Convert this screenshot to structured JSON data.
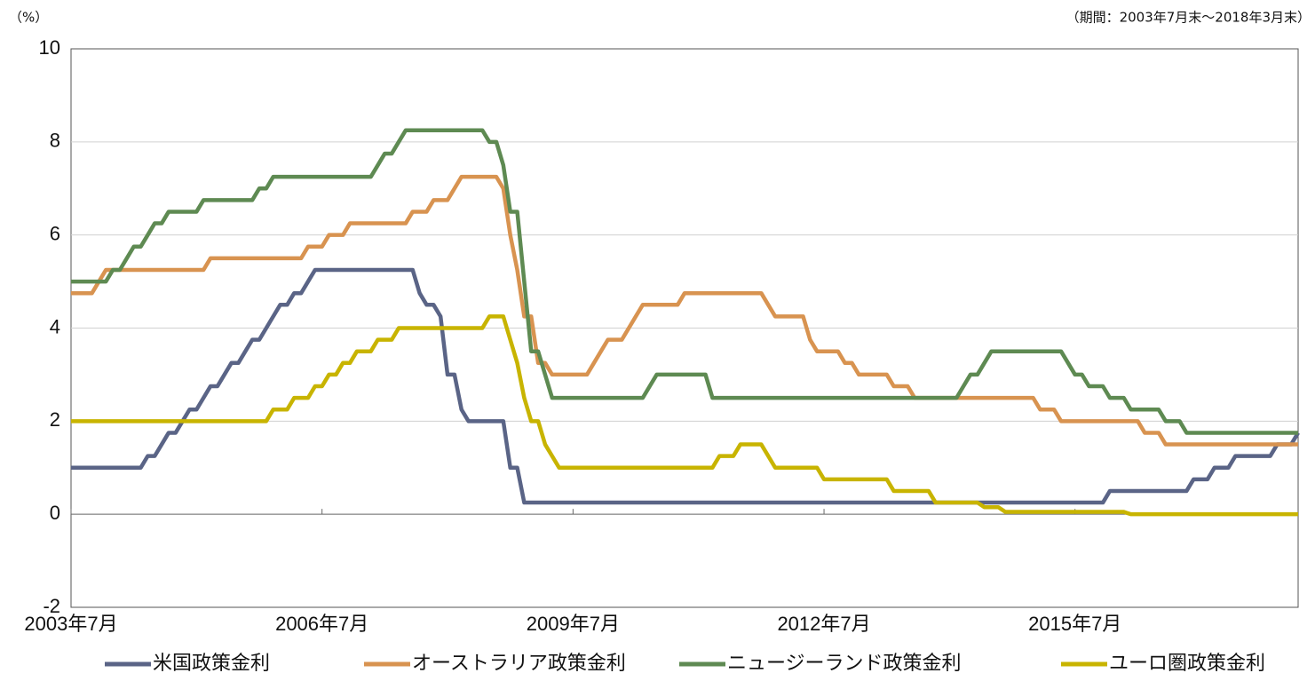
{
  "chart_data": {
    "type": "line",
    "y_unit": "（%）",
    "period_note": "（期間：2003年7月末～2018年3月末）",
    "xlim": [
      "2003-07",
      "2018-03"
    ],
    "xticks": [
      {
        "value": "2003-07",
        "label": "2003年7月"
      },
      {
        "value": "2006-07",
        "label": "2006年7月"
      },
      {
        "value": "2009-07",
        "label": "2009年7月"
      },
      {
        "value": "2012-07",
        "label": "2012年7月"
      },
      {
        "value": "2015-07",
        "label": "2015年7月"
      }
    ],
    "ylim": [
      -2,
      10
    ],
    "yticks": [
      -2,
      0,
      2,
      4,
      6,
      8,
      10
    ],
    "grid": true,
    "legend": "bottom",
    "series": [
      {
        "name": "米国政策金利",
        "color": "#5a6486",
        "x": [
          "2003-07",
          "2004-05",
          "2004-06",
          "2004-07",
          "2004-08",
          "2004-09",
          "2004-10",
          "2004-11",
          "2004-12",
          "2005-01",
          "2005-02",
          "2005-03",
          "2005-04",
          "2005-05",
          "2005-06",
          "2005-07",
          "2005-08",
          "2005-09",
          "2005-10",
          "2005-11",
          "2005-12",
          "2006-01",
          "2006-02",
          "2006-03",
          "2006-04",
          "2006-05",
          "2006-06",
          "2007-08",
          "2007-09",
          "2007-10",
          "2007-11",
          "2007-12",
          "2008-01",
          "2008-02",
          "2008-03",
          "2008-04",
          "2008-09",
          "2008-10",
          "2008-11",
          "2008-12",
          "2015-11",
          "2015-12",
          "2016-11",
          "2016-12",
          "2017-02",
          "2017-03",
          "2017-05",
          "2017-06",
          "2017-11",
          "2017-12",
          "2018-02",
          "2018-03"
        ],
        "values": [
          1,
          1,
          1.25,
          1.25,
          1.5,
          1.75,
          1.75,
          2,
          2.25,
          2.25,
          2.5,
          2.75,
          2.75,
          3,
          3.25,
          3.25,
          3.5,
          3.75,
          3.75,
          4,
          4.25,
          4.5,
          4.5,
          4.75,
          4.75,
          5,
          5.25,
          5.25,
          4.75,
          4.5,
          4.5,
          4.25,
          3,
          3,
          2.25,
          2,
          2,
          1,
          1,
          0.25,
          0.25,
          0.5,
          0.5,
          0.75,
          0.75,
          1,
          1,
          1.25,
          1.25,
          1.5,
          1.5,
          1.75
        ]
      },
      {
        "name": "オーストラリア政策金利",
        "color": "#d89350",
        "x": [
          "2003-07",
          "2003-10",
          "2003-11",
          "2003-12",
          "2005-02",
          "2005-03",
          "2006-04",
          "2006-05",
          "2006-07",
          "2006-08",
          "2006-10",
          "2006-11",
          "2007-07",
          "2007-08",
          "2007-10",
          "2007-11",
          "2008-01",
          "2008-02",
          "2008-03",
          "2008-08",
          "2008-09",
          "2008-10",
          "2008-11",
          "2008-12",
          "2009-01",
          "2009-02",
          "2009-03",
          "2009-04",
          "2009-09",
          "2009-10",
          "2009-11",
          "2009-12",
          "2010-02",
          "2010-03",
          "2010-04",
          "2010-05",
          "2010-10",
          "2010-11",
          "2011-10",
          "2011-11",
          "2011-12",
          "2012-04",
          "2012-05",
          "2012-06",
          "2012-09",
          "2012-10",
          "2012-11",
          "2012-12",
          "2013-04",
          "2013-05",
          "2013-07",
          "2013-08",
          "2015-01",
          "2015-02",
          "2015-04",
          "2015-05",
          "2016-04",
          "2016-05",
          "2016-07",
          "2016-08",
          "2018-03"
        ],
        "values": [
          4.75,
          4.75,
          5,
          5.25,
          5.25,
          5.5,
          5.5,
          5.75,
          5.75,
          6,
          6,
          6.25,
          6.25,
          6.5,
          6.5,
          6.75,
          6.75,
          7,
          7.25,
          7.25,
          7,
          6,
          5.25,
          4.25,
          4.25,
          3.25,
          3.25,
          3,
          3,
          3.25,
          3.5,
          3.75,
          3.75,
          4,
          4.25,
          4.5,
          4.5,
          4.75,
          4.75,
          4.5,
          4.25,
          4.25,
          3.75,
          3.5,
          3.5,
          3.25,
          3.25,
          3,
          3,
          2.75,
          2.75,
          2.5,
          2.5,
          2.25,
          2.25,
          2,
          2,
          1.75,
          1.75,
          1.5,
          1.5
        ]
      },
      {
        "name": "ニュージーランド政策金利",
        "color": "#5e8a52",
        "x": [
          "2003-07",
          "2003-12",
          "2004-01",
          "2004-02",
          "2004-03",
          "2004-04",
          "2004-05",
          "2004-06",
          "2004-07",
          "2004-08",
          "2004-09",
          "2005-01",
          "2005-02",
          "2005-09",
          "2005-10",
          "2005-11",
          "2005-12",
          "2007-02",
          "2007-03",
          "2007-04",
          "2007-05",
          "2007-06",
          "2007-07",
          "2008-06",
          "2008-07",
          "2008-08",
          "2008-09",
          "2008-10",
          "2008-11",
          "2008-12",
          "2009-01",
          "2009-02",
          "2009-03",
          "2009-04",
          "2010-05",
          "2010-06",
          "2010-07",
          "2011-02",
          "2011-03",
          "2014-02",
          "2014-03",
          "2014-04",
          "2014-05",
          "2014-06",
          "2014-07",
          "2015-05",
          "2015-06",
          "2015-07",
          "2015-08",
          "2015-09",
          "2015-11",
          "2015-12",
          "2016-02",
          "2016-03",
          "2016-07",
          "2016-08",
          "2016-10",
          "2016-11",
          "2018-03"
        ],
        "values": [
          5,
          5,
          5.25,
          5.25,
          5.5,
          5.75,
          5.75,
          6,
          6.25,
          6.25,
          6.5,
          6.5,
          6.75,
          6.75,
          7,
          7,
          7.25,
          7.25,
          7.5,
          7.75,
          7.75,
          8,
          8.25,
          8.25,
          8,
          8,
          7.5,
          6.5,
          6.5,
          5,
          3.5,
          3.5,
          3,
          2.5,
          2.5,
          2.75,
          3,
          3,
          2.5,
          2.5,
          2.75,
          3,
          3,
          3.25,
          3.5,
          3.5,
          3.25,
          3,
          3,
          2.75,
          2.75,
          2.5,
          2.5,
          2.25,
          2.25,
          2,
          2,
          1.75,
          1.75
        ]
      },
      {
        "name": "ユーロ圏政策金利",
        "color": "#c8b400",
        "x": [
          "2003-07",
          "2005-11",
          "2005-12",
          "2006-02",
          "2006-03",
          "2006-05",
          "2006-06",
          "2006-07",
          "2006-08",
          "2006-09",
          "2006-10",
          "2006-11",
          "2006-12",
          "2007-02",
          "2007-03",
          "2007-05",
          "2007-06",
          "2008-06",
          "2008-07",
          "2008-09",
          "2008-10",
          "2008-11",
          "2008-12",
          "2009-01",
          "2009-02",
          "2009-03",
          "2009-04",
          "2009-05",
          "2011-03",
          "2011-04",
          "2011-06",
          "2011-07",
          "2011-10",
          "2011-11",
          "2011-12",
          "2012-06",
          "2012-07",
          "2013-04",
          "2013-05",
          "2013-10",
          "2013-11",
          "2014-05",
          "2014-06",
          "2014-08",
          "2014-09",
          "2016-02",
          "2016-03",
          "2018-03"
        ],
        "values": [
          2,
          2,
          2.25,
          2.25,
          2.5,
          2.5,
          2.75,
          2.75,
          3,
          3,
          3.25,
          3.25,
          3.5,
          3.5,
          3.75,
          3.75,
          4,
          4,
          4.25,
          4.25,
          3.75,
          3.25,
          2.5,
          2,
          2,
          1.5,
          1.25,
          1,
          1,
          1.25,
          1.25,
          1.5,
          1.5,
          1.25,
          1,
          1,
          0.75,
          0.75,
          0.5,
          0.5,
          0.25,
          0.25,
          0.15,
          0.15,
          0.05,
          0.05,
          0,
          0
        ]
      }
    ]
  }
}
